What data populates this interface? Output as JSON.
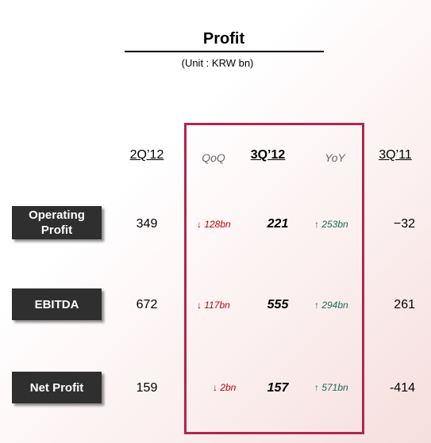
{
  "header": {
    "title": "Profit",
    "unit": "(Unit : KRW bn)"
  },
  "columns": {
    "prev_quarter": "2Q’12",
    "qoq": "QoQ",
    "current": "3Q’12",
    "yoy": "YoY",
    "prev_year": "3Q’11"
  },
  "rows": [
    {
      "label_line1": "Operating",
      "label_line2": "Profit",
      "prev_quarter": "349",
      "qoq": "↓ 128bn",
      "current": "221",
      "yoy": "↑ 253bn",
      "prev_year": "−32"
    },
    {
      "label_line1": "EBITDA",
      "label_line2": "",
      "prev_quarter": "672",
      "qoq": "↓ 117bn",
      "current": "555",
      "yoy": "↑ 294bn",
      "prev_year": "261"
    },
    {
      "label_line1": "Net Profit",
      "label_line2": "",
      "prev_quarter": "159",
      "qoq": "↓ 2bn",
      "current": "157",
      "yoy": "↑ 571bn",
      "prev_year": "-414"
    }
  ],
  "colors": {
    "highlight_border": "#b0264f",
    "decrease": "#c00000",
    "increase": "#1a6b5a",
    "label_bg": "#2f2f2f"
  }
}
